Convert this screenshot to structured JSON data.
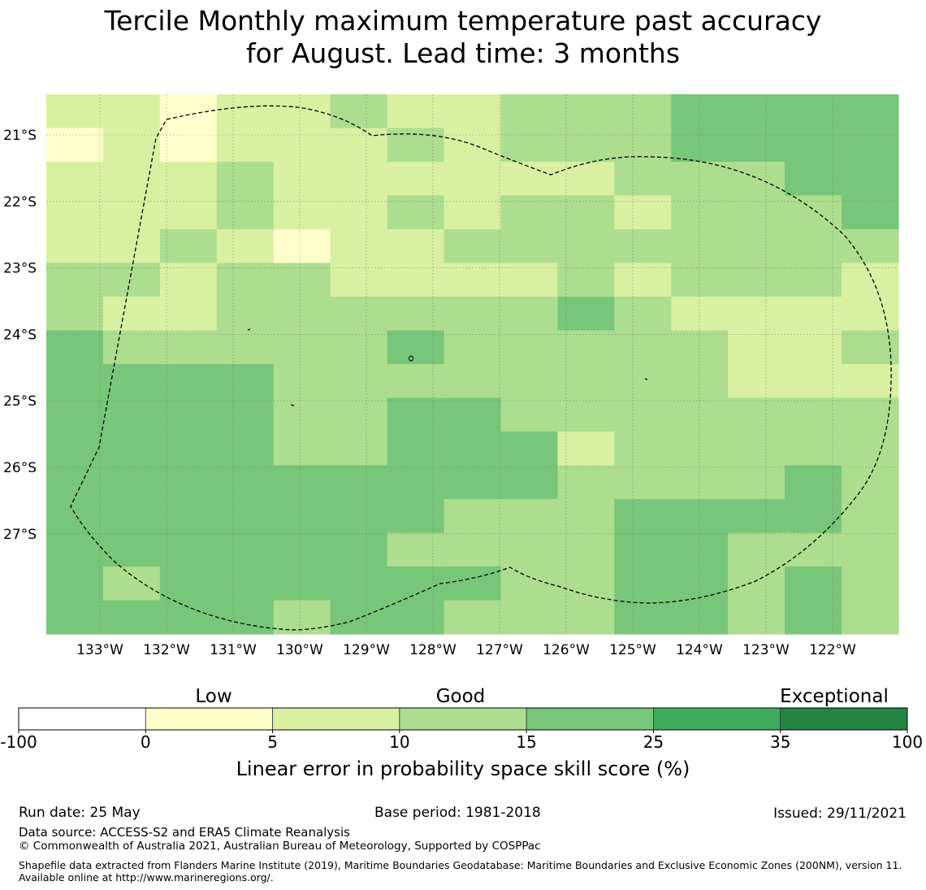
{
  "title": {
    "line1": "Tercile Monthly maximum temperature past accuracy",
    "line2": "for August. Lead time: 3 months"
  },
  "map": {
    "lon_labels": [
      "133°W",
      "132°W",
      "131°W",
      "130°W",
      "129°W",
      "128°W",
      "127°W",
      "126°W",
      "125°W",
      "124°W",
      "123°W",
      "122°W"
    ],
    "lat_labels": [
      "21°S",
      "22°S",
      "23°S",
      "24°S",
      "25°S",
      "26°S",
      "27°S"
    ],
    "boundary_style": "dashed",
    "cell_levels": [
      [
        2,
        2,
        1,
        2,
        2,
        3,
        2,
        2,
        3,
        3,
        3,
        4,
        4,
        4,
        4
      ],
      [
        1,
        2,
        1,
        2,
        2,
        2,
        3,
        2,
        3,
        3,
        3,
        4,
        4,
        4,
        4
      ],
      [
        2,
        2,
        2,
        3,
        2,
        2,
        2,
        2,
        2,
        2,
        3,
        3,
        3,
        4,
        4
      ],
      [
        2,
        2,
        2,
        3,
        2,
        2,
        3,
        2,
        3,
        3,
        2,
        3,
        3,
        3,
        4
      ],
      [
        2,
        2,
        3,
        2,
        1,
        2,
        2,
        3,
        3,
        3,
        3,
        3,
        3,
        3,
        3
      ],
      [
        3,
        3,
        2,
        3,
        3,
        2,
        2,
        2,
        2,
        3,
        2,
        3,
        3,
        3,
        2
      ],
      [
        3,
        2,
        2,
        3,
        3,
        3,
        3,
        3,
        3,
        4,
        3,
        2,
        2,
        2,
        2
      ],
      [
        4,
        3,
        3,
        3,
        3,
        3,
        4,
        3,
        3,
        3,
        3,
        3,
        2,
        2,
        3
      ],
      [
        4,
        4,
        4,
        4,
        3,
        3,
        3,
        3,
        3,
        3,
        3,
        3,
        2,
        2,
        2
      ],
      [
        4,
        4,
        4,
        4,
        3,
        3,
        4,
        4,
        3,
        3,
        3,
        3,
        3,
        3,
        3
      ],
      [
        4,
        4,
        4,
        4,
        3,
        3,
        4,
        4,
        4,
        2,
        3,
        3,
        3,
        3,
        3
      ],
      [
        4,
        4,
        4,
        4,
        4,
        4,
        4,
        4,
        4,
        3,
        3,
        3,
        3,
        4,
        3
      ],
      [
        4,
        4,
        4,
        4,
        4,
        4,
        4,
        3,
        3,
        3,
        4,
        4,
        4,
        4,
        3
      ],
      [
        4,
        4,
        4,
        4,
        4,
        4,
        3,
        3,
        3,
        3,
        4,
        4,
        3,
        3,
        3
      ],
      [
        4,
        3,
        4,
        4,
        4,
        4,
        4,
        4,
        3,
        3,
        4,
        4,
        3,
        4,
        3
      ],
      [
        4,
        4,
        4,
        4,
        3,
        4,
        4,
        3,
        3,
        3,
        4,
        4,
        3,
        4,
        3
      ]
    ]
  },
  "legend": {
    "categories": [
      "Low",
      "Good",
      "Exceptional"
    ],
    "ticks": [
      "-100",
      "0",
      "5",
      "10",
      "15",
      "25",
      "35",
      "100"
    ],
    "colors": [
      "#ffffff",
      "#ffffcc",
      "#d9f0a3",
      "#addd8e",
      "#78c679",
      "#41ab5d",
      "#238443"
    ],
    "label": "Linear error in probability space skill score (%)"
  },
  "footer": {
    "run_date": "Run date: 25 May",
    "base_period": "Base period: 1981-2018",
    "issued": "Issued: 29/11/2021",
    "data_source": "Data source: ACCESS-S2 and ERA5 Climate Reanalysis",
    "copyright": "© Commonwealth of Australia 2021, Australian Bureau of Meteorology, Supported by COSPPac",
    "shapefile": "Shapefile data extracted from Flanders Marine Institute (2019), Maritime Boundaries Geodatabase: Maritime Boundaries and Exclusive Economic Zones (200NM), version 11. Available online at http://www.marineregions.org/."
  }
}
